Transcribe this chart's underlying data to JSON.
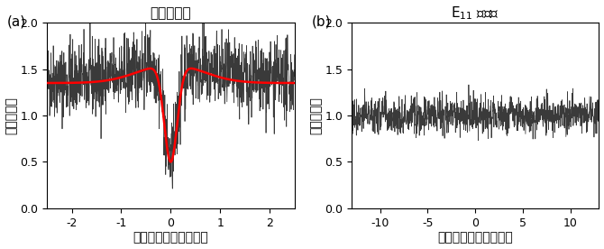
{
  "panel_a": {
    "title": "界面励起子",
    "xlabel": "検出時間差（ナノ秒）",
    "ylabel": "イベント数",
    "xlim": [
      -2.5,
      2.5
    ],
    "ylim": [
      0.0,
      2.0
    ],
    "xticks": [
      -2,
      -1,
      0,
      1,
      2
    ],
    "yticks": [
      0.0,
      0.5,
      1.0,
      1.5,
      2.0
    ],
    "noise_xmin": -2.5,
    "noise_xmax": 2.5,
    "noise_n": 1200,
    "noise_baseline": 1.38,
    "noise_amplitude": 0.2,
    "noise_seed": 42,
    "fit_baseline": 1.35,
    "fit_hump_amp": 0.2,
    "fit_hump_sigma": 0.65,
    "fit_dip_amp": 1.05,
    "fit_dip_sigma": 0.13,
    "fit_color": "#ff0000",
    "data_color": "#3a3a3a",
    "data_linewidth": 0.55,
    "fit_linewidth": 1.8
  },
  "panel_b": {
    "title": "E$_{11}$ 励起子",
    "xlabel": "検出時間差（ナノ秒）",
    "ylabel": "イベント数",
    "xlim": [
      -13,
      13
    ],
    "ylim": [
      0.0,
      2.0
    ],
    "xticks": [
      -10,
      -5,
      0,
      5,
      10
    ],
    "yticks": [
      0.0,
      0.5,
      1.0,
      1.5,
      2.0
    ],
    "noise_xmin": -13,
    "noise_xmax": 13,
    "noise_n": 1200,
    "noise_baseline": 1.0,
    "noise_amplitude": 0.1,
    "noise_seed": 77,
    "data_color": "#3a3a3a",
    "data_linewidth": 0.55
  },
  "label_a": "(a)",
  "label_b": "(b)",
  "title_fontsize": 11,
  "label_fontsize": 11,
  "tick_fontsize": 9,
  "axis_label_fontsize": 10,
  "fig_bgcolor": "#ffffff"
}
